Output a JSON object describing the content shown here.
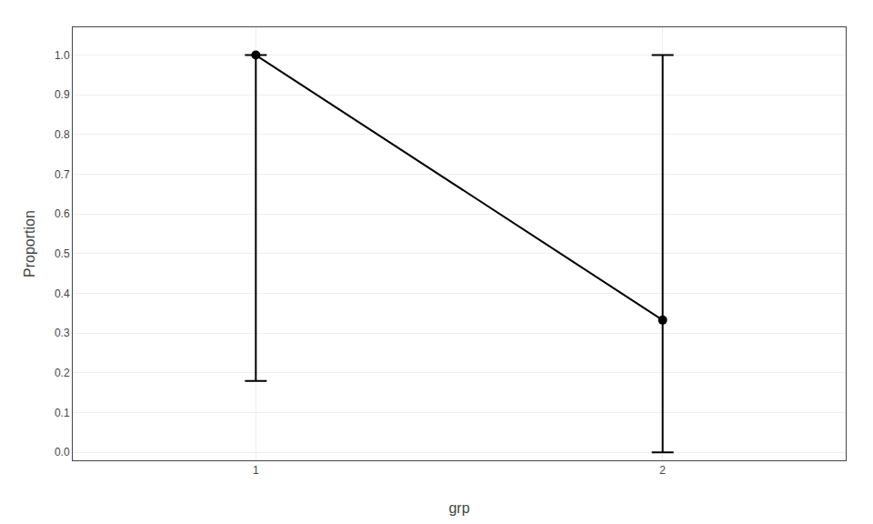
{
  "chart_data": {
    "type": "line",
    "xlabel": "grp",
    "ylabel": "Proportion",
    "x": [
      1,
      2
    ],
    "values": [
      1.0,
      0.333
    ],
    "ci_lower": [
      0.18,
      0.0
    ],
    "ci_upper": [
      1.0,
      1.0
    ],
    "color": "#000000",
    "marker": "circle",
    "xlim": [
      0.55,
      2.45
    ],
    "xticks": [
      1,
      2
    ],
    "ylim": [
      -0.02,
      1.07
    ],
    "yticks": [
      {
        "value": 0.0,
        "label": "0.0"
      },
      0.1,
      0.2,
      0.3,
      0.4,
      0.5,
      0.6,
      0.7,
      0.8,
      0.9,
      {
        "value": 1.0,
        "label": "1.0"
      }
    ],
    "grid": true
  }
}
